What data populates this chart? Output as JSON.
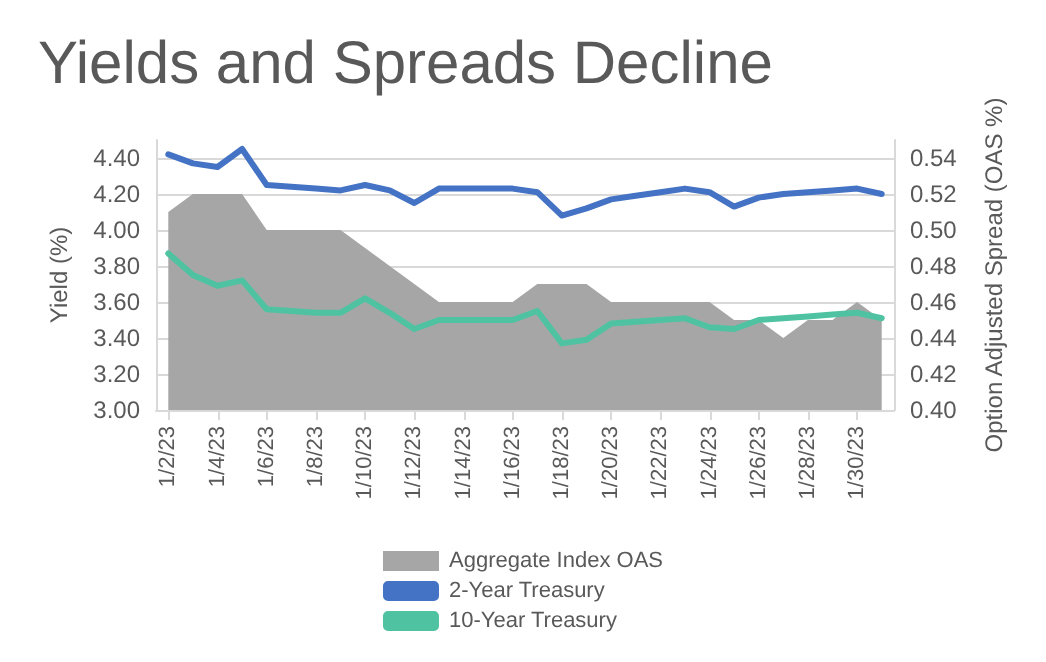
{
  "chart_data": {
    "type": "line",
    "title": "Yields and Spreads Decline",
    "categories": [
      "1/2/23",
      null,
      "1/4/23",
      null,
      "1/6/23",
      null,
      "1/8/23",
      null,
      "1/10/23",
      null,
      "1/12/23",
      null,
      "1/14/23",
      null,
      "1/16/23",
      null,
      "1/18/23",
      null,
      "1/20/23",
      null,
      "1/22/23",
      null,
      "1/24/23",
      null,
      "1/26/23",
      null,
      "1/28/23",
      null,
      "1/30/23",
      null
    ],
    "series": [
      {
        "name": "Aggregate Index OAS",
        "type": "area",
        "axis": "y2",
        "color": "#a6a6a6",
        "values": [
          0.51,
          0.52,
          0.52,
          0.52,
          0.5,
          0.5,
          0.5,
          0.5,
          0.49,
          0.48,
          0.47,
          0.46,
          0.46,
          0.46,
          0.46,
          0.47,
          0.47,
          0.47,
          0.46,
          0.46,
          0.46,
          0.46,
          0.46,
          0.45,
          0.45,
          0.44,
          0.45,
          0.45,
          0.46,
          0.45
        ]
      },
      {
        "name": "2-Year Treasury",
        "color": "#4472c4",
        "values": [
          4.42,
          4.37,
          4.35,
          4.45,
          4.25,
          4.24,
          4.23,
          4.22,
          4.25,
          4.22,
          4.15,
          4.23,
          4.23,
          4.23,
          4.23,
          4.21,
          4.08,
          4.12,
          4.17,
          4.19,
          4.21,
          4.23,
          4.21,
          4.13,
          4.18,
          4.2,
          4.21,
          4.22,
          4.23,
          4.2
        ]
      },
      {
        "name": "10-Year Treasury",
        "color": "#4fc3a1",
        "values": [
          3.87,
          3.75,
          3.69,
          3.72,
          3.56,
          3.55,
          3.54,
          3.54,
          3.62,
          3.54,
          3.45,
          3.5,
          3.5,
          3.5,
          3.5,
          3.55,
          3.37,
          3.39,
          3.48,
          3.49,
          3.5,
          3.51,
          3.46,
          3.45,
          3.5,
          3.51,
          3.52,
          3.53,
          3.54,
          3.51
        ]
      }
    ],
    "ylabel": "Yield (%)",
    "y2label": "Option Adjusted Spread (OAS %)",
    "ylim": [
      3.0,
      4.5
    ],
    "yticks": [
      {
        "value": 3.0,
        "label": "3.00"
      },
      {
        "value": 3.2,
        "label": "3.20"
      },
      {
        "value": 3.4,
        "label": "3.40"
      },
      {
        "value": 3.6,
        "label": "3.60"
      },
      {
        "value": 3.8,
        "label": "3.80"
      },
      {
        "value": 4.0,
        "label": "4.00"
      },
      {
        "value": 4.2,
        "label": "4.20"
      },
      {
        "value": 4.4,
        "label": "4.40"
      }
    ],
    "y2lim": [
      0.4,
      0.55
    ],
    "y2ticks": [
      {
        "value": 0.4,
        "label": "0.40"
      },
      {
        "value": 0.42,
        "label": "0.42"
      },
      {
        "value": 0.44,
        "label": "0.44"
      },
      {
        "value": 0.46,
        "label": "0.46"
      },
      {
        "value": 0.48,
        "label": "0.48"
      },
      {
        "value": 0.5,
        "label": "0.50"
      },
      {
        "value": 0.52,
        "label": "0.52"
      },
      {
        "value": 0.54,
        "label": "0.54"
      }
    ],
    "grid": "y",
    "legend": "bottom",
    "marker": "none",
    "line_style": "solid"
  }
}
